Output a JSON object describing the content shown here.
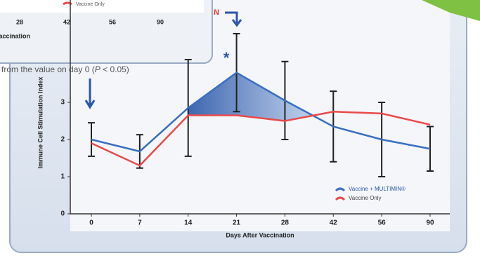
{
  "chart_data": {
    "type": "line",
    "xlabel": "Days After Vaccination",
    "ylabel": "Immune Cell Stimulation Index",
    "categories": [
      "0",
      "7",
      "14",
      "21",
      "28",
      "42",
      "56",
      "90"
    ],
    "series": [
      {
        "name": "Vaccine + MULTIMIN®",
        "color": "#3a6fc0",
        "values": [
          2.0,
          1.68,
          2.85,
          3.8,
          3.05,
          2.35,
          2.0,
          1.75
        ],
        "errors": [
          0.45,
          0.45,
          1.3,
          1.05,
          1.05,
          0.95,
          1.0,
          0.6
        ]
      },
      {
        "name": "Vaccine Only",
        "color": "#e84a4a",
        "values": [
          1.9,
          1.3,
          2.65,
          2.65,
          2.5,
          2.75,
          2.7,
          2.4
        ]
      }
    ],
    "ylim": [
      0,
      4
    ],
    "yticks": [
      0,
      1,
      2,
      3
    ],
    "annotation": "*",
    "note": [
      "from the value on day 0 (",
      "P",
      " < 0.05)"
    ],
    "inset": {
      "xticks": [
        "28",
        "42",
        "56",
        "90"
      ],
      "xlabel": "Vaccination",
      "legend": "Vaccine Only"
    }
  }
}
